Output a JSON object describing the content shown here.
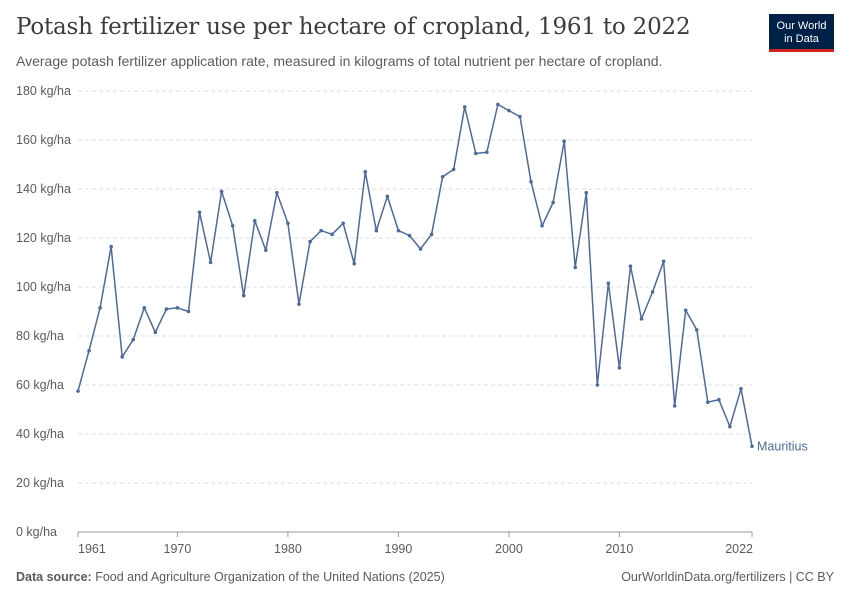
{
  "header": {
    "title": "Potash fertilizer use per hectare of cropland, 1961 to 2022",
    "subtitle": "Average potash fertilizer application rate, measured in kilograms of total nutrient per hectare of cropland."
  },
  "logo": {
    "line1": "Our World",
    "line2": "in Data"
  },
  "footer": {
    "source_label": "Data source:",
    "source_text": "Food and Agriculture Organization of the United Nations (2025)",
    "url_license": "OurWorldinData.org/fertilizers | CC BY"
  },
  "colors": {
    "series": "#4c6a9c",
    "grid": "#dddddd",
    "axis_text": "#5b5b5b",
    "logo_bg": "#002147",
    "logo_accent": "#ce261e"
  },
  "chart_data": {
    "type": "line",
    "title": "Potash fertilizer use per hectare of cropland, 1961 to 2022",
    "ylim": [
      0,
      180
    ],
    "xlim": [
      1961,
      2022
    ],
    "y_ticks": [
      0,
      20,
      40,
      60,
      80,
      100,
      120,
      140,
      160,
      180
    ],
    "y_tick_labels": [
      "0 kg/ha",
      "20 kg/ha",
      "40 kg/ha",
      "60 kg/ha",
      "80 kg/ha",
      "100 kg/ha",
      "120 kg/ha",
      "140 kg/ha",
      "160 kg/ha",
      "180 kg/ha"
    ],
    "x_ticks": [
      1961,
      1970,
      1980,
      1990,
      2000,
      2010,
      2022
    ],
    "x_tick_labels": [
      "1961",
      "1970",
      "1980",
      "1990",
      "2000",
      "2010",
      "2022"
    ],
    "grid": "horizontal dashed",
    "series": [
      {
        "name": "Mauritius",
        "x": [
          1961,
          1962,
          1963,
          1964,
          1965,
          1966,
          1967,
          1968,
          1969,
          1970,
          1971,
          1972,
          1973,
          1974,
          1975,
          1976,
          1977,
          1978,
          1979,
          1980,
          1981,
          1982,
          1983,
          1984,
          1985,
          1986,
          1987,
          1988,
          1989,
          1990,
          1991,
          1992,
          1993,
          1994,
          1995,
          1996,
          1997,
          1998,
          1999,
          2000,
          2001,
          2002,
          2003,
          2004,
          2005,
          2006,
          2007,
          2008,
          2009,
          2010,
          2011,
          2012,
          2013,
          2014,
          2015,
          2016,
          2017,
          2018,
          2019,
          2020,
          2021,
          2022
        ],
        "values": [
          57.5,
          74,
          91.5,
          116.5,
          71.5,
          78.5,
          91.5,
          81.5,
          91,
          91.5,
          90,
          130.5,
          110,
          139,
          125,
          96.5,
          127,
          115,
          138.5,
          126,
          93,
          118.5,
          123,
          121.5,
          126,
          109.5,
          147,
          123,
          137,
          123,
          121,
          115.5,
          121.5,
          145,
          148,
          173.5,
          154.5,
          155,
          174.5,
          172,
          169.5,
          143,
          125,
          134.5,
          159.5,
          108,
          138.5,
          60,
          101.5,
          67,
          108.5,
          87,
          98,
          110.5,
          51.5,
          90.5,
          82.5,
          53,
          54,
          43,
          58.5,
          35
        ]
      }
    ]
  }
}
